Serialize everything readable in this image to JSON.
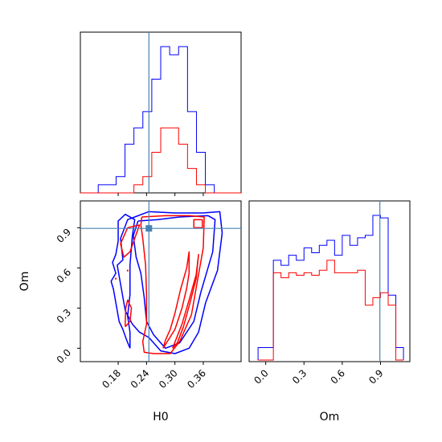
{
  "chart_data": {
    "type": "corner",
    "parameters": [
      "H0",
      "Om"
    ],
    "truth": {
      "H0": 0.245,
      "Om": 0.895
    },
    "colors": {
      "series_a": "#0000ff",
      "series_b": "#ff0000",
      "truth": "#4682b4"
    },
    "series": [
      {
        "color": "#0000ff",
        "scale": "larger"
      },
      {
        "color": "#ff0000",
        "scale": "smaller"
      }
    ],
    "panels": [
      {
        "panel": "H0-histogram",
        "type": "step-histogram",
        "xlim": [
          0.1,
          0.44
        ],
        "xticks": [
          0.18,
          0.24,
          0.3,
          0.36
        ],
        "xtick_labels_shown": false,
        "bin_edges": [
          0.1,
          0.1189,
          0.1378,
          0.1567,
          0.1756,
          0.1944,
          0.2133,
          0.2322,
          0.2511,
          0.27,
          0.2889,
          0.3078,
          0.3267,
          0.3456,
          0.3644,
          0.3833,
          0.4022,
          0.4211,
          0.44
        ],
        "blue_counts": [
          0,
          0,
          1,
          1,
          2,
          6,
          8,
          10,
          14,
          18,
          17,
          18,
          10,
          5,
          1,
          0,
          0,
          0
        ],
        "red_counts": [
          0,
          0,
          0,
          0,
          0,
          0,
          1,
          2,
          5,
          8,
          8,
          6,
          3,
          1,
          0,
          0,
          0,
          0
        ]
      },
      {
        "panel": "H0-Om-contours",
        "type": "contour",
        "x": "H0",
        "y": "Om",
        "xlim": [
          0.1,
          0.44
        ],
        "ylim": [
          -0.1,
          1.1
        ],
        "xticks": [
          0.18,
          0.24,
          0.3,
          0.36
        ],
        "xtick_labels": [
          "0.18",
          "0.24",
          "0.30",
          "0.36"
        ],
        "yticks": [
          0.0,
          0.3,
          0.6,
          0.9
        ],
        "ytick_labels": [
          "0.0",
          "0.3",
          "0.6",
          "0.9"
        ],
        "xlabel": "H0",
        "ylabel": "Om",
        "blue_contours": [
          [
            [
              0.215,
              0.98
            ],
            [
              0.245,
              1.02
            ],
            [
              0.3,
              1.01
            ],
            [
              0.36,
              1.01
            ],
            [
              0.395,
              1.02
            ],
            [
              0.4,
              0.86
            ],
            [
              0.39,
              0.58
            ],
            [
              0.365,
              0.34
            ],
            [
              0.35,
              0.12
            ],
            [
              0.33,
              0.0
            ],
            [
              0.3,
              -0.04
            ],
            [
              0.27,
              -0.02
            ],
            [
              0.245,
              0.08
            ],
            [
              0.225,
              0.12
            ],
            [
              0.21,
              0.18
            ],
            [
              0.195,
              0.28
            ],
            [
              0.185,
              0.48
            ],
            [
              0.178,
              0.62
            ],
            [
              0.19,
              0.66
            ],
            [
              0.185,
              0.82
            ],
            [
              0.2,
              0.96
            ],
            [
              0.215,
              0.98
            ]
          ],
          [
            [
              0.222,
              0.95
            ],
            [
              0.262,
              0.96
            ],
            [
              0.31,
              0.98
            ],
            [
              0.37,
              0.99
            ],
            [
              0.385,
              0.96
            ],
            [
              0.38,
              0.72
            ],
            [
              0.355,
              0.42
            ],
            [
              0.34,
              0.2
            ],
            [
              0.31,
              0.04
            ],
            [
              0.28,
              0.0
            ],
            [
              0.255,
              0.1
            ],
            [
              0.24,
              0.2
            ],
            [
              0.235,
              0.38
            ],
            [
              0.228,
              0.56
            ],
            [
              0.218,
              0.68
            ],
            [
              0.212,
              0.84
            ],
            [
              0.222,
              0.95
            ]
          ],
          [
            [
              0.205,
              0.0
            ],
            [
              0.198,
              0.06
            ],
            [
              0.19,
              0.14
            ],
            [
              0.182,
              0.2
            ],
            [
              0.175,
              0.34
            ],
            [
              0.17,
              0.44
            ],
            [
              0.165,
              0.5
            ],
            [
              0.175,
              0.56
            ],
            [
              0.168,
              0.64
            ],
            [
              0.175,
              0.7
            ],
            [
              0.18,
              0.8
            ],
            [
              0.18,
              0.95
            ],
            [
              0.195,
              1.0
            ],
            [
              0.215,
              0.96
            ],
            [
              0.21,
              0.84
            ],
            [
              0.205,
              0.62
            ],
            [
              0.205,
              0.4
            ],
            [
              0.2,
              0.24
            ],
            [
              0.205,
              0.12
            ],
            [
              0.205,
              0.0
            ]
          ]
        ],
        "red_contours": [
          [
            [
              0.23,
              0.98
            ],
            [
              0.28,
              0.99
            ],
            [
              0.33,
              0.99
            ],
            [
              0.362,
              0.98
            ],
            [
              0.36,
              0.75
            ],
            [
              0.35,
              0.55
            ],
            [
              0.335,
              0.25
            ],
            [
              0.31,
              0.05
            ],
            [
              0.29,
              -0.04
            ],
            [
              0.255,
              -0.04
            ],
            [
              0.235,
              -0.03
            ],
            [
              0.232,
              0.05
            ],
            [
              0.24,
              0.18
            ],
            [
              0.24,
              0.4
            ],
            [
              0.238,
              0.62
            ],
            [
              0.232,
              0.82
            ],
            [
              0.228,
              0.92
            ],
            [
              0.23,
              0.98
            ]
          ],
          [
            [
              0.275,
              0.0
            ],
            [
              0.3,
              0.14
            ],
            [
              0.315,
              0.3
            ],
            [
              0.325,
              0.45
            ],
            [
              0.33,
              0.56
            ],
            [
              0.33,
              0.72
            ],
            [
              0.325,
              0.6
            ],
            [
              0.312,
              0.44
            ],
            [
              0.3,
              0.26
            ],
            [
              0.29,
              0.14
            ],
            [
              0.28,
              0.06
            ],
            [
              0.275,
              0.0
            ]
          ],
          [
            [
              0.295,
              0.0
            ],
            [
              0.315,
              0.18
            ],
            [
              0.33,
              0.36
            ],
            [
              0.345,
              0.55
            ],
            [
              0.35,
              0.7
            ],
            [
              0.345,
              0.52
            ],
            [
              0.332,
              0.34
            ],
            [
              0.318,
              0.16
            ],
            [
              0.305,
              0.04
            ],
            [
              0.295,
              0.0
            ]
          ],
          [
            [
              0.34,
              0.9
            ],
            [
              0.358,
              0.9
            ],
            [
              0.358,
              0.96
            ],
            [
              0.34,
              0.96
            ],
            [
              0.34,
              0.9
            ]
          ],
          [
            [
              0.2,
              0.9
            ],
            [
              0.225,
              0.92
            ],
            [
              0.215,
              0.82
            ],
            [
              0.205,
              0.72
            ],
            [
              0.192,
              0.68
            ],
            [
              0.185,
              0.78
            ],
            [
              0.2,
              0.9
            ]
          ],
          [
            [
              0.195,
              0.16
            ],
            [
              0.205,
              0.2
            ],
            [
              0.208,
              0.3
            ],
            [
              0.2,
              0.36
            ],
            [
              0.196,
              0.3
            ],
            [
              0.195,
              0.2
            ],
            [
              0.195,
              0.16
            ]
          ]
        ],
        "red_points": [
          [
            0.205,
            0.22
          ],
          [
            0.175,
            0.52
          ],
          [
            0.2,
            0.58
          ]
        ]
      },
      {
        "panel": "Om-histogram",
        "type": "step-histogram",
        "xlim": [
          -0.13,
          1.13
        ],
        "xticks": [
          0.0,
          0.3,
          0.6,
          0.9
        ],
        "xtick_labels": [
          "0.0",
          "0.3",
          "0.6",
          "0.9"
        ],
        "xlabel": "Om",
        "bin_edges": [
          -0.06,
          0.0,
          0.06,
          0.12,
          0.18,
          0.24,
          0.3,
          0.36,
          0.42,
          0.48,
          0.54,
          0.6,
          0.66,
          0.72,
          0.78,
          0.84,
          0.9,
          0.96,
          1.02,
          1.08
        ],
        "blue_counts": [
          0.5,
          0.5,
          4.0,
          3.8,
          4.2,
          4.0,
          4.5,
          4.3,
          4.6,
          4.8,
          4.2,
          5.0,
          4.6,
          4.9,
          5.0,
          5.8,
          5.7,
          2.6,
          0.5
        ],
        "red_counts": [
          0.0,
          0.0,
          3.5,
          3.3,
          3.5,
          3.4,
          3.5,
          3.4,
          3.6,
          4.0,
          3.5,
          3.5,
          3.5,
          3.6,
          2.2,
          2.5,
          2.7,
          2.2,
          0.0
        ]
      }
    ]
  }
}
